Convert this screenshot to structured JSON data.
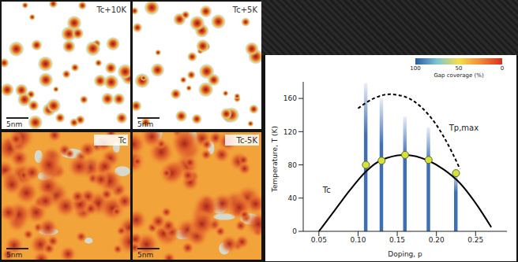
{
  "maps": [
    {
      "label": "Tc+10K",
      "scale_bar": "5nm"
    },
    {
      "label": "Tc+5K",
      "scale_bar": "5nm"
    },
    {
      "label": "Tc",
      "scale_bar": "5nm"
    },
    {
      "label": "Tc-5K",
      "scale_bar": "5nm"
    }
  ],
  "chart_data": {
    "type": "bar",
    "x_label": "Doping, p",
    "y_label": "Temperature, T (K)",
    "xlim": [
      0.03,
      0.29
    ],
    "xticks": [
      0.05,
      {
        "value": 0.1,
        "label": "0.10"
      },
      0.15,
      {
        "value": 0.2,
        "label": "0.20"
      },
      0.25
    ],
    "ylim": [
      0,
      180
    ],
    "yticks": [
      0,
      40,
      80,
      120,
      160
    ],
    "colorbar": {
      "label": "Gap coverage (%)",
      "range": [
        100,
        0
      ],
      "ticks": [
        100,
        50,
        0
      ]
    },
    "annotations": [
      {
        "text": "Tc",
        "x": 0.06,
        "y": 50
      },
      {
        "text": "Tp,max",
        "x": 0.235,
        "y": 125
      }
    ],
    "series": [
      {
        "type": "bar",
        "color": "#3d6fb5",
        "x": [
          0.11,
          0.13,
          0.16,
          0.19,
          0.225
        ],
        "values": [
          178,
          160,
          138,
          125,
          72
        ]
      },
      {
        "type": "line",
        "color": "#000000",
        "line_style": "solid",
        "x": [
          0.05,
          0.07,
          0.09,
          0.11,
          0.13,
          0.16,
          0.19,
          0.21,
          0.23,
          0.25,
          0.27
        ],
        "values": [
          0,
          25,
          50,
          72,
          86,
          92,
          85,
          74,
          58,
          34,
          5
        ]
      },
      {
        "type": "line",
        "color": "#000000",
        "line_style": "dashed",
        "x": [
          0.1,
          0.12,
          0.14,
          0.16,
          0.18,
          0.2,
          0.22,
          0.23
        ],
        "values": [
          148,
          160,
          165,
          162,
          150,
          128,
          95,
          75
        ]
      },
      {
        "type": "scatter",
        "color": "#d8e03a",
        "marker": "circle",
        "x": [
          0.11,
          0.13,
          0.16,
          0.19,
          0.225
        ],
        "values": [
          80,
          85,
          92,
          86,
          70
        ]
      }
    ]
  }
}
